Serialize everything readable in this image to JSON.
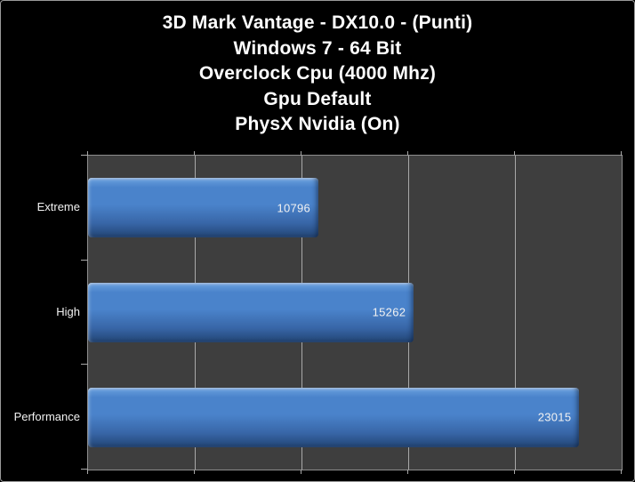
{
  "chart_data": {
    "type": "bar",
    "orientation": "horizontal",
    "title": "3D Mark Vantage - DX10.0 - (Punti)",
    "title_lines": [
      "3D Mark Vantage - DX10.0 - (Punti)",
      "Windows 7 - 64 Bit",
      "Overclock Cpu (4000 Mhz)",
      "Gpu Default",
      "PhysX Nvidia (On)"
    ],
    "categories": [
      "Extreme",
      "High",
      "Performance"
    ],
    "values": [
      10796,
      15262,
      23015
    ],
    "xlabel": "",
    "ylabel": "",
    "xlim": [
      0,
      25000
    ],
    "gridlines_x": [
      5000,
      10000,
      15000,
      20000,
      25000
    ],
    "grid": true,
    "legend": false,
    "value_labels": "inside-end",
    "colors": {
      "page_background": "#000000",
      "frame_border": "#999999",
      "plot_background": "#3E3E3E",
      "gridline": "#A8A8A8",
      "plot_border": "#8E8E8E",
      "bar_gradient": [
        "#8AB4E6",
        "#5C94D6",
        "#4A83CB",
        "#3866A7",
        "#2A5187",
        "#203F6B"
      ],
      "text": "#FFFFFF",
      "value_text": "#F2F2F2"
    }
  }
}
